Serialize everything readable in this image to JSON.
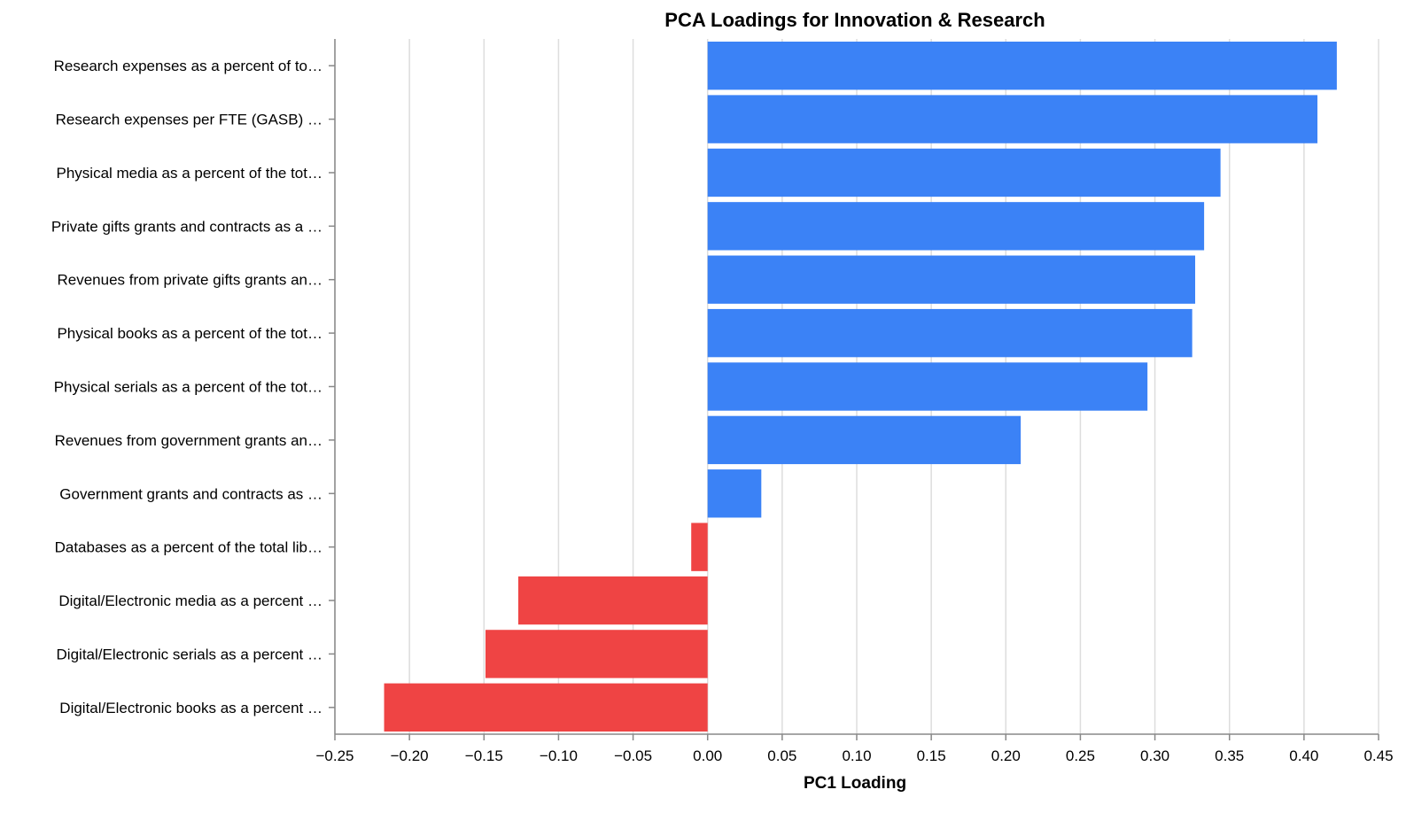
{
  "chart_data": {
    "type": "bar",
    "orientation": "horizontal",
    "title": "PCA Loadings for Innovation & Research",
    "xlabel": "PC1 Loading",
    "ylabel": "",
    "xlim": [
      -0.25,
      0.45
    ],
    "xticks": [
      -0.25,
      -0.2,
      -0.15,
      -0.1,
      -0.05,
      0.0,
      0.05,
      0.1,
      0.15,
      0.2,
      0.25,
      0.3,
      0.35,
      0.4,
      0.45
    ],
    "xtick_labels": [
      "−0.25",
      "−0.20",
      "−0.15",
      "−0.10",
      "−0.05",
      "0.00",
      "0.05",
      "0.10",
      "0.15",
      "0.20",
      "0.25",
      "0.30",
      "0.35",
      "0.40",
      "0.45"
    ],
    "grid": true,
    "positive_color": "#3b82f6",
    "negative_color": "#ef4444",
    "categories": [
      "Research expenses as a percent of to…",
      "Research expenses per FTE (GASB) …",
      "Physical media as a percent of the tot…",
      "Private gifts grants and contracts as a …",
      "Revenues from private gifts grants an…",
      "Physical books as a percent of the tot…",
      "Physical serials as a percent of the tot…",
      "Revenues from government grants an…",
      "Government grants and contracts as …",
      "Databases as a percent of the total lib…",
      "Digital/Electronic media as a percent …",
      "Digital/Electronic serials as a percent …",
      "Digital/Electronic books as a percent …"
    ],
    "values": [
      0.422,
      0.409,
      0.344,
      0.333,
      0.327,
      0.325,
      0.295,
      0.21,
      0.036,
      -0.011,
      -0.127,
      -0.149,
      -0.217
    ]
  }
}
